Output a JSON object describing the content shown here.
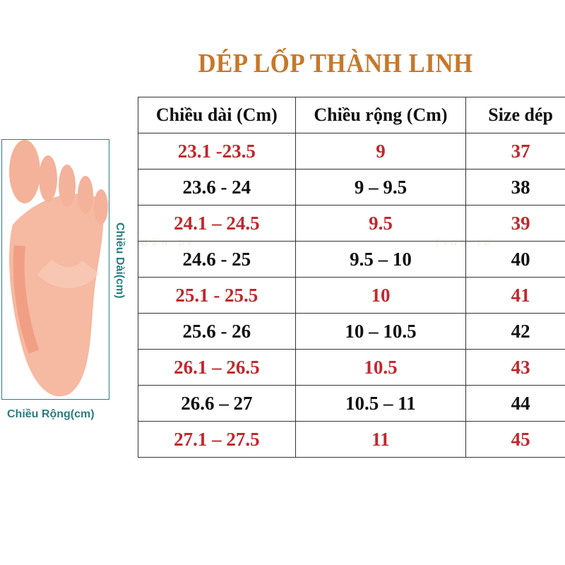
{
  "title": "DÉP LỐP THÀNH LINH",
  "watermark": {
    "lines": [
      "DÉP LỐP",
      "Bền bỉ",
      "Tinh tế",
      "Thành Linh"
    ]
  },
  "foot_diagram": {
    "width_label": "Chiều Rộng(cm)",
    "length_label": "Chiều Dài(cm)"
  },
  "table": {
    "headers": [
      "Chiều dài (Cm)",
      "Chiều rộng (Cm)",
      "Size dép"
    ],
    "rows": [
      {
        "length": "23.1 -23.5",
        "width": "9",
        "size": "37",
        "color": "red"
      },
      {
        "length": "23.6 - 24",
        "width": "9 – 9.5",
        "size": "38",
        "color": "black"
      },
      {
        "length": "24.1 – 24.5",
        "width": "9.5",
        "size": "39",
        "color": "red"
      },
      {
        "length": "24.6 - 25",
        "width": "9.5 – 10",
        "size": "40",
        "color": "black"
      },
      {
        "length": "25.1 - 25.5",
        "width": "10",
        "size": "41",
        "color": "red"
      },
      {
        "length": "25.6 - 26",
        "width": "10 – 10.5",
        "size": "42",
        "color": "black"
      },
      {
        "length": "26.1 – 26.5",
        "width": "10.5",
        "size": "43",
        "color": "red"
      },
      {
        "length": "26.6 – 27",
        "width": "10.5 – 11",
        "size": "44",
        "color": "black"
      },
      {
        "length": "27.1 – 27.5",
        "width": "11",
        "size": "45",
        "color": "red"
      }
    ]
  },
  "colors": {
    "title": "#c8772a",
    "red_text": "#c0282d",
    "label": "#2a7d80"
  }
}
